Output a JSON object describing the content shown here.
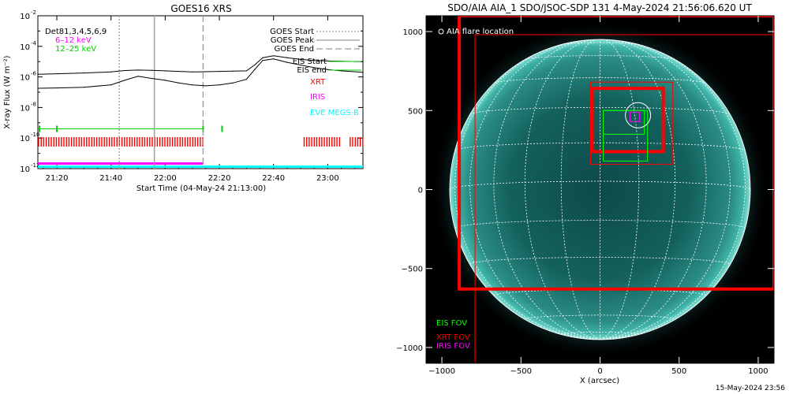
{
  "left_panel": {
    "title": "GOES16 XRS",
    "ylabel": "X-ray Flux (W m⁻²)",
    "xlabel": "Start Time (04-May-24 21:13:00)",
    "legend_top_left": [
      {
        "text": "Det81,3,4,5,6,9",
        "color": "#000000"
      },
      {
        "text": "6–12 keV",
        "color": "#ff00ff"
      },
      {
        "text": "12–25 keV",
        "color": "#00cc00"
      }
    ],
    "legend_right": [
      {
        "text": "GOES Start",
        "color": "#808080",
        "style": "dotted"
      },
      {
        "text": "GOES Peak",
        "color": "#808080",
        "style": "solid"
      },
      {
        "text": "GOES End",
        "color": "#808080",
        "style": "dashed"
      },
      {
        "text": "EIS Start",
        "color": "#00cc00",
        "style": "solid"
      },
      {
        "text": "EIS end",
        "color": "#00cc00",
        "style": "solid"
      }
    ],
    "instrument_labels": [
      {
        "text": "XRT",
        "color": "#ff0000"
      },
      {
        "text": "IRIS",
        "color": "#ff00ff"
      },
      {
        "text": "EVE MEGS-B",
        "color": "#00ffff"
      }
    ],
    "ytick_labels": [
      "10",
      "10",
      "10",
      "10",
      "10",
      "10"
    ],
    "ytick_exponents": [
      "-2",
      "-4",
      "-6",
      "-8",
      "-10",
      "-12"
    ],
    "xtick_labels": [
      "21:20",
      "21:40",
      "22:00",
      "22:20",
      "22:40",
      "23:00"
    ]
  },
  "right_panel": {
    "title": "SDO/AIA AIA_1 SDO/JSOC-SDP 131  4-May-2024 21:56:06.620 UT",
    "xlabel": "X (arcsec)",
    "flare_label": "AIA flare location",
    "xtick_labels": [
      "−1000",
      "−500",
      "0",
      "500",
      "1000"
    ],
    "ytick_labels": [
      "1000",
      "500",
      "0",
      "−500",
      "−1000"
    ],
    "fov_legend": [
      {
        "text": "EIS FOV",
        "color": "#00ff00"
      },
      {
        "text": "XRT FOV",
        "color": "#ff0000"
      },
      {
        "text": "IRIS FOV",
        "color": "#ff00ff"
      }
    ]
  },
  "footer_timestamp": "15-May-2024 23:56",
  "chart_data": [
    {
      "type": "line",
      "title": "GOES16 XRS",
      "xlabel": "Start Time (04-May-24 21:13:00)",
      "ylabel": "X-ray Flux (W m⁻²)",
      "yscale": "log",
      "ylim": [
        1e-12,
        0.01
      ],
      "xlim": [
        "21:13",
        "23:13"
      ],
      "grid": false,
      "series": [
        {
          "key": "long",
          "color": "#000000",
          "x": [
            "21:13",
            "21:20",
            "21:30",
            "21:40",
            "21:45",
            "21:50",
            "21:55",
            "22:00",
            "22:05",
            "22:10",
            "22:15",
            "22:20",
            "22:25",
            "22:30",
            "22:33",
            "22:36",
            "22:40",
            "22:45",
            "22:50",
            "22:55",
            "23:00",
            "23:05",
            "23:13"
          ],
          "y": [
            1.5e-06,
            1.6e-06,
            1.8e-06,
            2.1e-06,
            2.6e-06,
            2.8e-06,
            2.7e-06,
            2.5e-06,
            2.3e-06,
            2.1e-06,
            2.2e-06,
            2.3e-06,
            2.4e-06,
            2.5e-06,
            6e-06,
            1.8e-05,
            2.4e-05,
            1.8e-05,
            1.4e-05,
            1.2e-05,
            1.1e-05,
            1.05e-05,
            1e-05
          ]
        },
        {
          "key": "short",
          "color": "#000000",
          "x": [
            "21:13",
            "21:20",
            "21:30",
            "21:40",
            "21:45",
            "21:50",
            "21:55",
            "22:00",
            "22:05",
            "22:10",
            "22:15",
            "22:20",
            "22:25",
            "22:30",
            "22:33",
            "22:36",
            "22:40",
            "22:45",
            "22:50",
            "22:55",
            "23:00",
            "23:05",
            "23:13"
          ],
          "y": [
            1.8e-07,
            1.9e-07,
            2.1e-07,
            3e-07,
            6e-07,
            1.1e-06,
            8e-07,
            6e-07,
            4e-07,
            3e-07,
            2.6e-07,
            3e-07,
            4e-07,
            7e-07,
            3e-06,
            1.2e-05,
            1.5e-05,
            9e-06,
            6e-06,
            4e-06,
            3e-06,
            2.5e-06,
            2e-06
          ]
        }
      ],
      "vlines": [
        {
          "x": "21:43",
          "style": "dotted",
          "color": "#a0a0a0"
        },
        {
          "x": "21:56",
          "style": "solid",
          "color": "#a0a0a0"
        },
        {
          "x": "22:14",
          "style": "dashed",
          "color": "#a0a0a0"
        }
      ],
      "eis_marks": [
        {
          "x_start": "21:13",
          "x_end": "22:14",
          "y": 4e-10,
          "color": "#00cc00"
        }
      ],
      "xrt_coverage": [
        {
          "x_start": "21:13",
          "x_end": "22:14"
        },
        {
          "x_start": "22:51",
          "x_end": "23:05"
        },
        {
          "x_start": "23:08",
          "x_end": "23:13"
        }
      ],
      "iris_coverage": [
        {
          "x_start": "21:13",
          "x_end": "22:14"
        }
      ],
      "eve_coverage": [
        {
          "x_start": "21:13",
          "x_end": "23:13"
        }
      ]
    },
    {
      "type": "image",
      "title": "SDO/AIA AIA_1 SDO/JSOC-SDP 131  4-May-2024 21:56:06.620 UT",
      "xlabel": "X (arcsec)",
      "xlim": [
        -1100,
        1100
      ],
      "ylim": [
        -1100,
        1100
      ],
      "solar_radius_arcsec": 950,
      "fov_boxes": [
        {
          "instrument": "XRT",
          "color": "#ff0000",
          "x0": -790,
          "y0": -1100,
          "x1": 1100,
          "y1": 980,
          "width": 1
        },
        {
          "instrument": "XRT",
          "color": "#ff0000",
          "x0": -890,
          "y0": -630,
          "x1": 1100,
          "y1": 1100,
          "width": 4
        },
        {
          "instrument": "XRT",
          "color": "#ff0000",
          "x0": -60,
          "y0": 160,
          "x1": 460,
          "y1": 680,
          "width": 1
        },
        {
          "instrument": "XRT",
          "color": "#ff0000",
          "x0": -50,
          "y0": 240,
          "x1": 400,
          "y1": 640,
          "width": 4
        },
        {
          "instrument": "EIS",
          "color": "#00ff00",
          "x0": 20,
          "y0": 180,
          "x1": 300,
          "y1": 500,
          "width": 1
        },
        {
          "instrument": "EIS",
          "color": "#00ff00",
          "x0": 20,
          "y0": 350,
          "x1": 280,
          "y1": 500,
          "width": 1
        },
        {
          "instrument": "IRIS",
          "color": "#ff00ff",
          "x0": 190,
          "y0": 430,
          "x1": 250,
          "y1": 490,
          "width": 1
        }
      ],
      "flare_location": {
        "x": 240,
        "y": 470
      }
    }
  ]
}
